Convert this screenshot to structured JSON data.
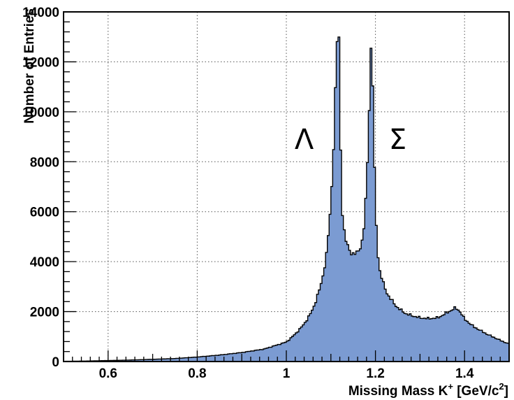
{
  "chart_data": {
    "type": "area",
    "style": "step-histogram",
    "xlabel": "Missing Mass K",
    "xlabel_sup": "+",
    "xlabel_unit_prefix": " [GeV/c",
    "xlabel_unit_sup": "2",
    "xlabel_unit_suffix": "]",
    "ylabel": "Number of Entries",
    "xlim": [
      0.5,
      1.5
    ],
    "ylim": [
      0,
      14000
    ],
    "xticks": [
      0.6,
      0.8,
      1,
      1.2,
      1.4
    ],
    "xtick_labels": [
      "0.6",
      "0.8",
      "1",
      "1.2",
      "1.4"
    ],
    "yticks": [
      0,
      2000,
      4000,
      6000,
      8000,
      10000,
      12000,
      14000
    ],
    "ytick_labels": [
      "0",
      "2000",
      "4000",
      "6000",
      "8000",
      "10000",
      "12000",
      "14000"
    ],
    "grid": true,
    "fill_color": "#7b9bd2",
    "line_color": "#000000",
    "annotations": [
      {
        "text": "Λ",
        "x": 1.04,
        "y": 8900
      },
      {
        "text": "Σ",
        "x": 1.25,
        "y": 8900
      }
    ],
    "x": [
      0.5,
      0.55,
      0.6,
      0.65,
      0.7,
      0.75,
      0.8,
      0.85,
      0.9,
      0.95,
      1.0,
      1.02,
      1.04,
      1.06,
      1.08,
      1.09,
      1.1,
      1.105,
      1.11,
      1.113,
      1.116,
      1.118,
      1.12,
      1.123,
      1.126,
      1.13,
      1.135,
      1.14,
      1.15,
      1.16,
      1.17,
      1.175,
      1.18,
      1.185,
      1.188,
      1.191,
      1.193,
      1.196,
      1.2,
      1.205,
      1.21,
      1.22,
      1.23,
      1.25,
      1.27,
      1.3,
      1.32,
      1.34,
      1.36,
      1.375,
      1.38,
      1.39,
      1.4,
      1.42,
      1.45,
      1.48,
      1.5
    ],
    "values": [
      10,
      20,
      40,
      60,
      90,
      120,
      180,
      260,
      360,
      500,
      780,
      1100,
      1500,
      2100,
      3200,
      4300,
      6200,
      8200,
      10800,
      12600,
      13400,
      12800,
      10200,
      7600,
      6000,
      5200,
      4750,
      4500,
      4300,
      4350,
      4800,
      5500,
      7000,
      9500,
      11800,
      12700,
      12200,
      9000,
      6200,
      4400,
      3600,
      3000,
      2600,
      2150,
      1900,
      1750,
      1720,
      1750,
      1950,
      2100,
      2150,
      2000,
      1700,
      1400,
      1100,
      850,
      700
    ]
  }
}
